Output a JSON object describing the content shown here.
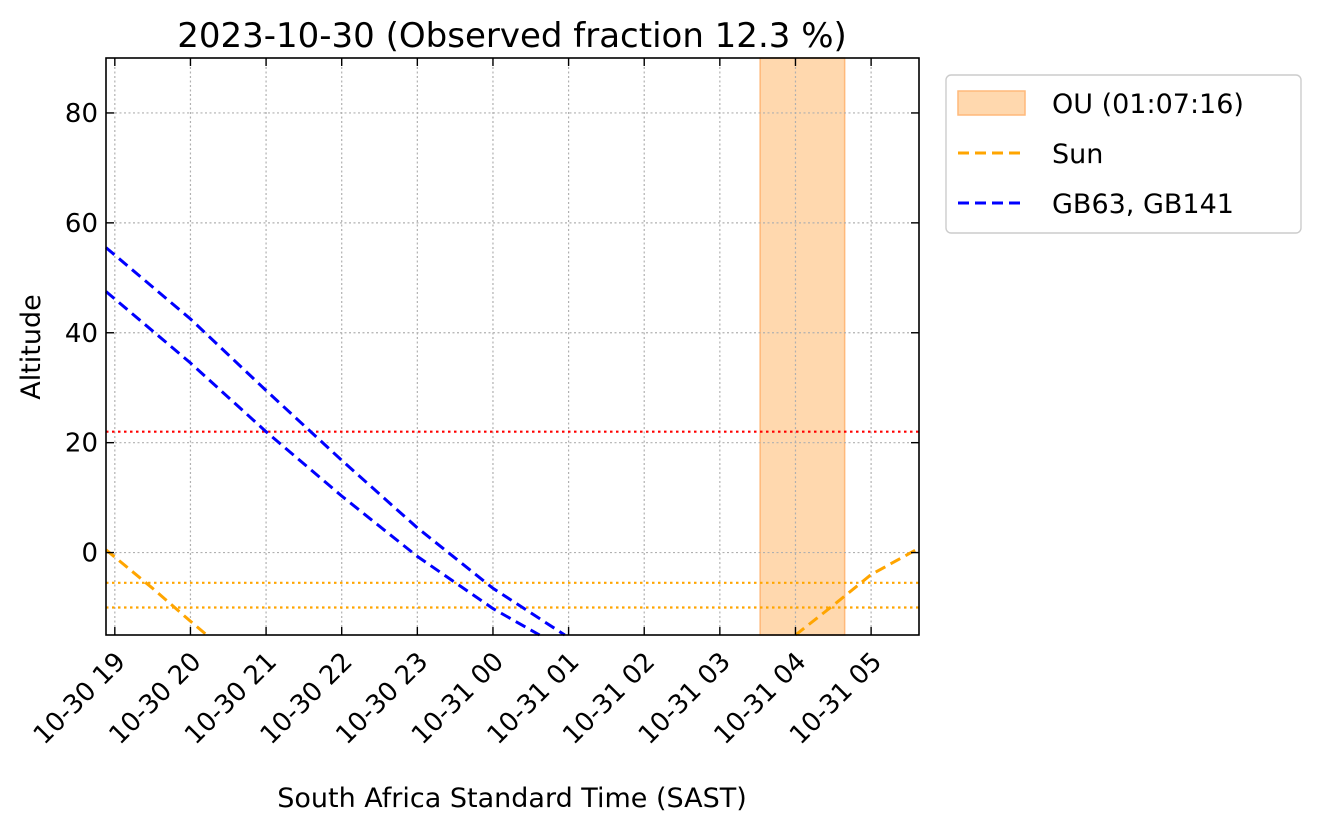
{
  "chart_data": {
    "type": "line",
    "title": "2023-10-30 (Observed fraction 12.3 %)",
    "xlabel": "South Africa Standard Time (SAST)",
    "ylabel": "Altitude",
    "x_unit": "hours",
    "xlim": [
      "2023-10-30 18:53",
      "2023-10-31 05:38"
    ],
    "ylim": [
      -15,
      90
    ],
    "x_ticks": [
      "10-30 19",
      "10-30 20",
      "10-30 21",
      "10-30 22",
      "10-30 23",
      "10-31 00",
      "10-31 01",
      "10-31 02",
      "10-31 03",
      "10-31 04",
      "10-31 05"
    ],
    "x_tick_values": [
      "2023-10-30 19:00",
      "2023-10-30 20:00",
      "2023-10-30 21:00",
      "2023-10-30 22:00",
      "2023-10-30 23:00",
      "2023-10-31 00:00",
      "2023-10-31 01:00",
      "2023-10-31 02:00",
      "2023-10-31 03:00",
      "2023-10-31 04:00",
      "2023-10-31 05:00"
    ],
    "y_ticks": [
      0,
      20,
      40,
      60,
      80
    ],
    "grid": true,
    "legend_position": "outside-top-right",
    "shaded_regions": [
      {
        "name": "OU (01:07:16)",
        "x_start": "2023-10-31 03:32",
        "x_end": "2023-10-31 04:39",
        "color": "#ffd8ae",
        "edge_color": "#ffb97a"
      }
    ],
    "hlines": [
      {
        "y": 22,
        "color": "#ff0000",
        "style": "dotted"
      },
      {
        "y": -5.5,
        "color": "#ffa500",
        "style": "dotted"
      },
      {
        "y": -10,
        "color": "#ffa500",
        "style": "dotted"
      }
    ],
    "series": [
      {
        "name": "Sun",
        "color": "#ffa500",
        "style": "dashed",
        "segments": [
          {
            "x": [
              "2023-10-30 18:53",
              "2023-10-30 19:30",
              "2023-10-30 20:00",
              "2023-10-30 20:13"
            ],
            "y": [
              0.5,
              -6.5,
              -12.5,
              -15
            ]
          },
          {
            "x": [
              "2023-10-31 04:00",
              "2023-10-31 04:30",
              "2023-10-31 05:00",
              "2023-10-31 05:38"
            ],
            "y": [
              -15,
              -9.6,
              -4,
              0.8
            ]
          }
        ]
      },
      {
        "name": "GB63, GB141",
        "color": "#0000ff",
        "style": "dashed",
        "segments": [
          {
            "x": [
              "2023-10-30 18:53",
              "2023-10-30 20:00",
              "2023-10-30 21:00",
              "2023-10-30 22:00",
              "2023-10-30 23:00",
              "2023-10-31 00:00",
              "2023-10-31 00:57"
            ],
            "y": [
              55.5,
              42.5,
              29.5,
              16.8,
              4.5,
              -6.5,
              -15
            ]
          },
          {
            "x": [
              "2023-10-30 18:53",
              "2023-10-30 20:00",
              "2023-10-30 21:00",
              "2023-10-30 22:00",
              "2023-10-30 23:00",
              "2023-10-31 00:00",
              "2023-10-31 00:37"
            ],
            "y": [
              47.5,
              34.5,
              22,
              10.3,
              -0.7,
              -10.2,
              -15
            ]
          }
        ]
      }
    ]
  }
}
